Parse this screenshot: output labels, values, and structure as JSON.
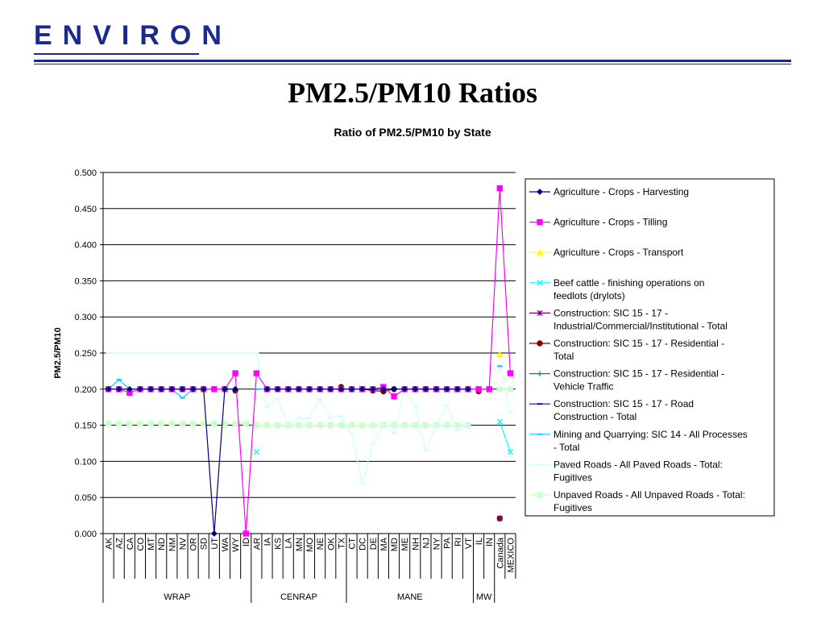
{
  "header": {
    "logo_text": "ENVIRON",
    "slide_title": "PM2.5/PM10 Ratios"
  },
  "chart_data": {
    "type": "line",
    "title": "Ratio of PM2.5/PM10 by State",
    "xlabel": "",
    "ylabel": "PM2.5/PM10",
    "ylim": [
      0,
      0.5
    ],
    "yticks": [
      "0.000",
      "0.050",
      "0.100",
      "0.150",
      "0.200",
      "0.250",
      "0.300",
      "0.350",
      "0.400",
      "0.450",
      "0.500"
    ],
    "grid": true,
    "legend_position": "right",
    "categories": [
      "AK",
      "AZ",
      "CA",
      "CO",
      "MT",
      "ND",
      "NM",
      "NV",
      "OR",
      "SD",
      "UT",
      "WA",
      "WY",
      "ID",
      "AR",
      "IA",
      "KS",
      "LA",
      "MN",
      "MO",
      "NE",
      "OK",
      "TX",
      "CT",
      "DC",
      "DE",
      "MA",
      "MD",
      "ME",
      "NH",
      "NJ",
      "NY",
      "PA",
      "RI",
      "VT",
      "IL",
      "IN",
      "Canada",
      "MEXICO"
    ],
    "groups": [
      {
        "label": "WRAP",
        "start": 0,
        "end": 13
      },
      {
        "label": "CENRAP",
        "start": 14,
        "end": 22
      },
      {
        "label": "MANE",
        "start": 23,
        "end": 34
      },
      {
        "label": "MW",
        "start": 35,
        "end": 36
      }
    ],
    "series": [
      {
        "name": "Agriculture - Crops - Harvesting",
        "color": "#000080",
        "marker": "diamond",
        "values": [
          0.2,
          0.2,
          0.2,
          0.2,
          0.2,
          0.2,
          0.2,
          0.2,
          0.2,
          0.2,
          0.0,
          0.2,
          0.2,
          null,
          null,
          0.2,
          0.2,
          0.2,
          0.2,
          0.2,
          0.2,
          0.2,
          0.2,
          0.2,
          0.2,
          0.2,
          0.2,
          0.2,
          0.2,
          0.2,
          0.2,
          0.2,
          0.2,
          0.2,
          0.2,
          null,
          null,
          null,
          null
        ]
      },
      {
        "name": "Agriculture - Crops - Tilling",
        "color": "#ff00ff",
        "marker": "square",
        "values": [
          0.2,
          0.2,
          0.195,
          0.2,
          0.2,
          0.2,
          0.2,
          0.2,
          0.2,
          0.2,
          0.2,
          0.2,
          0.222,
          0.0,
          0.222,
          0.2,
          0.2,
          0.2,
          0.2,
          0.2,
          0.2,
          0.2,
          0.2,
          0.2,
          0.2,
          0.2,
          0.203,
          0.19,
          0.2,
          0.2,
          0.2,
          0.2,
          0.2,
          0.2,
          0.2,
          0.2,
          0.2,
          0.478,
          0.222
        ]
      },
      {
        "name": "Agriculture - Crops - Transport",
        "color": "#ffff00",
        "marker": "triangle",
        "values": [
          null,
          null,
          null,
          null,
          null,
          null,
          null,
          null,
          null,
          null,
          null,
          null,
          null,
          null,
          null,
          null,
          null,
          null,
          null,
          null,
          null,
          null,
          null,
          null,
          null,
          null,
          null,
          null,
          null,
          null,
          null,
          null,
          null,
          null,
          null,
          null,
          null,
          0.248,
          null
        ]
      },
      {
        "name": "Beef cattle -  finishing operations on feedlots (drylots)",
        "color": "#00ffff",
        "marker": "x",
        "values": [
          null,
          null,
          null,
          null,
          null,
          null,
          null,
          null,
          null,
          null,
          null,
          null,
          null,
          null,
          0.113,
          null,
          null,
          null,
          null,
          null,
          null,
          null,
          null,
          null,
          null,
          null,
          null,
          null,
          null,
          null,
          null,
          null,
          null,
          null,
          null,
          null,
          null,
          0.155,
          0.113
        ]
      },
      {
        "name": "Construction: SIC 15 - 17 - Industrial/Commercial/Institutional - Total",
        "color": "#800080",
        "marker": "star",
        "values": [
          null,
          null,
          null,
          null,
          null,
          null,
          null,
          null,
          null,
          null,
          null,
          null,
          null,
          null,
          null,
          null,
          null,
          null,
          null,
          null,
          null,
          null,
          null,
          null,
          null,
          null,
          null,
          null,
          null,
          null,
          null,
          null,
          null,
          null,
          null,
          null,
          null,
          0.021,
          null
        ]
      },
      {
        "name": "Construction: SIC 15 - 17 - Residential - Total",
        "color": "#800000",
        "marker": "circle",
        "values": [
          null,
          0.2,
          null,
          0.2,
          null,
          null,
          null,
          0.2,
          null,
          null,
          0.2,
          null,
          0.198,
          null,
          null,
          null,
          null,
          null,
          null,
          null,
          null,
          null,
          0.203,
          null,
          0.2,
          0.198,
          0.197,
          0.2,
          null,
          null,
          0.2,
          null,
          null,
          null,
          null,
          0.197,
          null,
          0.021,
          null
        ]
      },
      {
        "name": "Construction: SIC 15 - 17 - Residential - Vehicle Traffic",
        "color": "#008080",
        "marker": "plus",
        "values": [
          null,
          null,
          null,
          null,
          null,
          null,
          null,
          null,
          null,
          null,
          null,
          null,
          null,
          null,
          null,
          null,
          null,
          null,
          null,
          null,
          null,
          null,
          null,
          null,
          null,
          null,
          null,
          null,
          null,
          null,
          null,
          null,
          null,
          null,
          null,
          null,
          null,
          0.02,
          null
        ]
      },
      {
        "name": "Construction: SIC 15 - 17 - Road Construction - Total",
        "color": "#0000ff",
        "marker": "dash",
        "values": [
          null,
          null,
          null,
          null,
          null,
          null,
          null,
          null,
          null,
          null,
          null,
          null,
          null,
          null,
          null,
          null,
          null,
          null,
          null,
          null,
          null,
          null,
          null,
          null,
          null,
          null,
          null,
          null,
          null,
          null,
          null,
          null,
          null,
          null,
          null,
          null,
          null,
          null,
          null
        ]
      },
      {
        "name": "Mining and Quarrying: SIC 14 - All Processes - Total",
        "color": "#00ccff",
        "marker": "dash",
        "values": [
          0.2,
          0.213,
          0.2,
          0.2,
          0.2,
          0.2,
          0.2,
          0.188,
          0.2,
          0.2,
          0.2,
          0.2,
          0.2,
          null,
          0.2,
          0.2,
          0.2,
          0.2,
          0.2,
          0.2,
          0.2,
          0.2,
          0.2,
          0.2,
          0.2,
          0.2,
          0.2,
          0.2,
          0.2,
          0.2,
          0.2,
          0.2,
          0.2,
          0.2,
          0.2,
          0.2,
          null,
          0.232,
          null
        ]
      },
      {
        "name": "Paved Roads - All Paved Roads - Total: Fugitives",
        "color": "#ccffff",
        "marker": "dash",
        "values": [
          0.25,
          0.25,
          0.25,
          0.25,
          0.25,
          0.25,
          0.25,
          0.25,
          0.25,
          0.25,
          0.25,
          0.25,
          0.25,
          0.25,
          0.25,
          0.175,
          0.187,
          0.15,
          0.16,
          0.16,
          0.186,
          0.16,
          0.163,
          0.137,
          0.069,
          0.125,
          0.15,
          0.139,
          0.2,
          0.176,
          0.115,
          0.15,
          0.178,
          0.143,
          0.15,
          null,
          null,
          0.23,
          0.168
        ]
      },
      {
        "name": "Unpaved Roads - All Unpaved Roads - Total: Fugitives",
        "color": "#ccffcc",
        "marker": "square",
        "values": [
          0.152,
          0.152,
          0.152,
          0.152,
          0.152,
          0.152,
          0.152,
          0.152,
          0.152,
          0.152,
          0.152,
          0.152,
          0.152,
          0.152,
          0.15,
          0.15,
          0.15,
          0.15,
          0.15,
          0.15,
          0.15,
          0.15,
          0.15,
          0.15,
          0.15,
          0.15,
          0.15,
          0.15,
          0.15,
          0.15,
          0.15,
          0.15,
          0.15,
          0.15,
          0.15,
          null,
          null,
          0.2,
          0.2
        ]
      }
    ]
  }
}
